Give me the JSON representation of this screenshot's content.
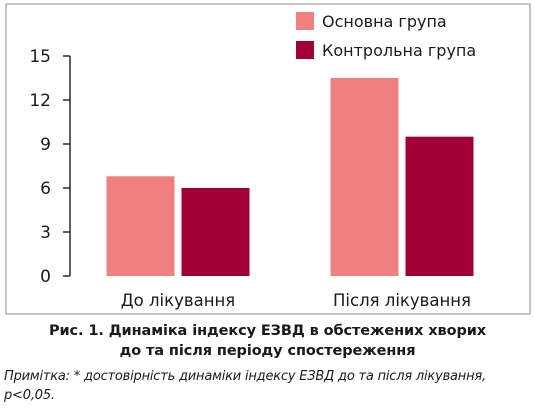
{
  "chart_data": {
    "type": "bar",
    "title": "",
    "xlabel": "",
    "ylabel": "",
    "categories": [
      "До лікування",
      "Після лікування"
    ],
    "series": [
      {
        "name": "Основна група",
        "values": [
          6.8,
          13.5
        ],
        "color": "#f07f80"
      },
      {
        "name": "Контрольна група",
        "values": [
          6.0,
          9.5
        ],
        "color": "#a30033"
      }
    ],
    "ylim": [
      0,
      15
    ],
    "yticks": [
      0,
      3,
      6,
      9,
      12,
      15
    ],
    "ytick_labels": [
      "0",
      "3",
      "6",
      "9",
      "12",
      "15"
    ],
    "grid": false,
    "legend_position": "top-right"
  },
  "caption": {
    "line1": "Рис. 1. Динаміка індексу ЕЗВД в обстежених хворих",
    "line2": "до та після періоду спостереження"
  },
  "note": {
    "line1": "Примітка: * достовірність динаміки індексу ЕЗВД до та після лікування,",
    "line2": "p<0,05."
  },
  "colors": {
    "frame": "#8a8a8a",
    "axis": "#1a1a1a"
  }
}
